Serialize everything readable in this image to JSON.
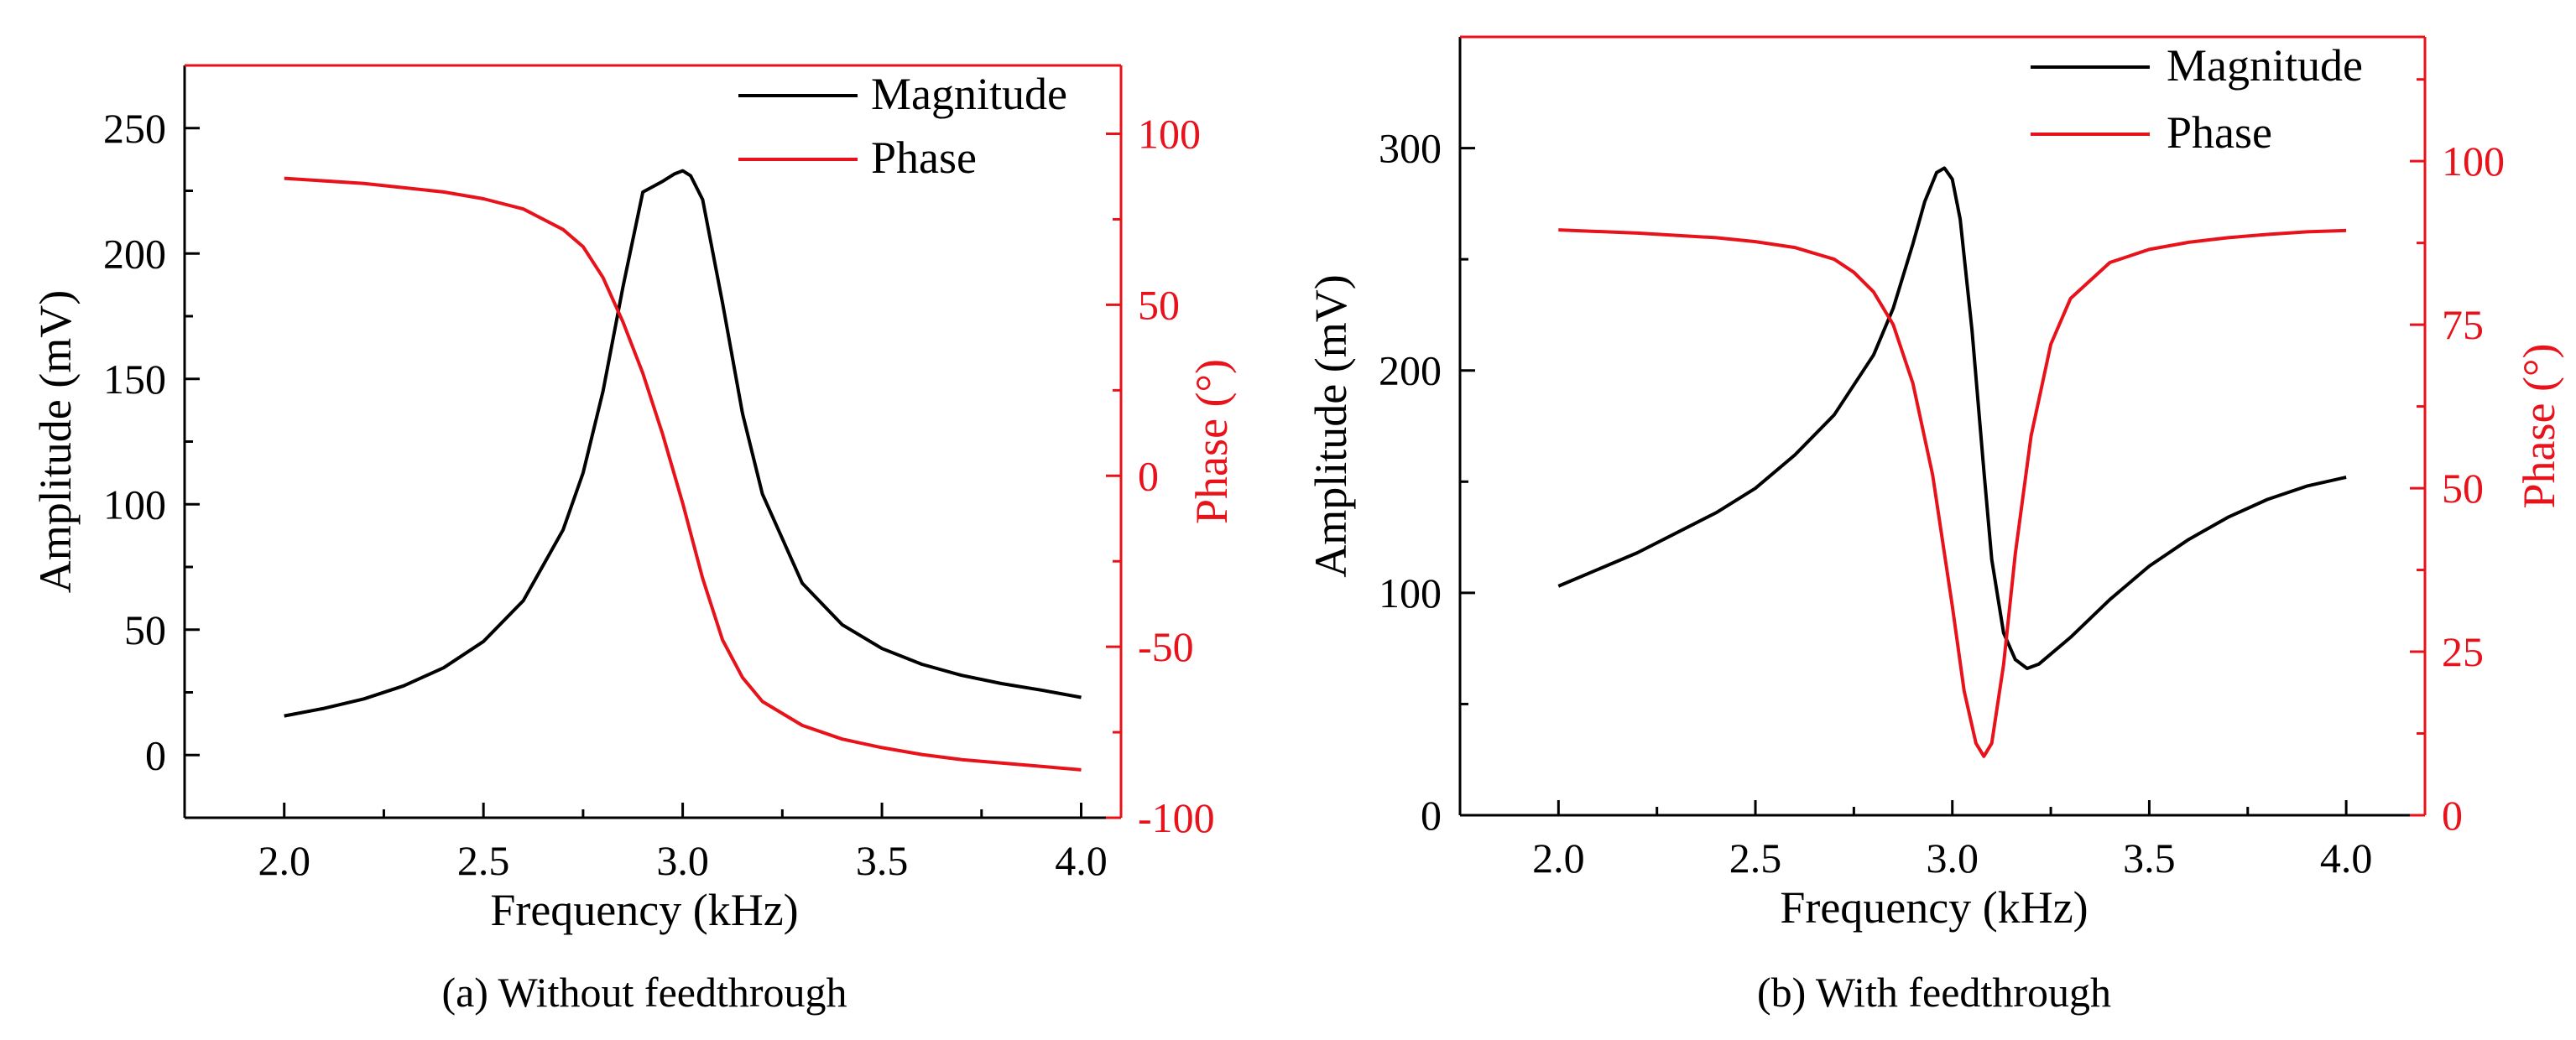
{
  "chart_data": [
    {
      "type": "line",
      "caption": "(a) Without feedthrough",
      "xlabel": "Frequency (kHz)",
      "ylabel": "Amplitude (mV)",
      "y2label": "Phase (°)",
      "xlim": [
        1.75,
        4.1
      ],
      "ylim": [
        -25,
        275
      ],
      "y2lim": [
        -100,
        120
      ],
      "xticks": [
        2.0,
        2.5,
        3.0,
        3.5,
        4.0
      ],
      "xtick_labels": [
        "2.0",
        "2.5",
        "3.0",
        "3.5",
        "4.0"
      ],
      "yticks": [
        0,
        50,
        100,
        150,
        200,
        250
      ],
      "ytick_labels": [
        "0",
        "50",
        "100",
        "150",
        "200",
        "250"
      ],
      "y2ticks": [
        -100,
        -50,
        0,
        50,
        100
      ],
      "y2tick_labels": [
        "-100",
        "-50",
        "0",
        "50",
        "100"
      ],
      "legend_position": "top-right",
      "grid": false,
      "series": [
        {
          "name": "Magnitude",
          "axis": "left",
          "color": "#000000",
          "x": [
            2.0,
            2.1,
            2.2,
            2.3,
            2.4,
            2.5,
            2.6,
            2.7,
            2.75,
            2.8,
            2.85,
            2.9,
            2.95,
            2.98,
            3.0,
            3.02,
            3.05,
            3.1,
            3.15,
            3.2,
            3.3,
            3.4,
            3.5,
            3.6,
            3.7,
            3.8,
            3.9,
            4.0
          ],
          "values": [
            15.6,
            18.6,
            22.4,
            27.6,
            34.8,
            45.3,
            61.6,
            89.8,
            112.5,
            145.0,
            186.6,
            224.5,
            228.8,
            231.8,
            233.0,
            231.0,
            221.5,
            180.3,
            136.2,
            104.1,
            68.5,
            52.0,
            42.5,
            36.2,
            31.8,
            28.5,
            25.9,
            23.0
          ]
        },
        {
          "name": "Phase",
          "axis": "right",
          "color": "#e8121b",
          "x": [
            2.0,
            2.2,
            2.4,
            2.5,
            2.6,
            2.7,
            2.75,
            2.8,
            2.85,
            2.9,
            2.95,
            3.0,
            3.05,
            3.1,
            3.15,
            3.2,
            3.3,
            3.4,
            3.5,
            3.6,
            3.7,
            3.8,
            3.9,
            4.0
          ],
          "values": [
            87.0,
            85.5,
            83.0,
            81.0,
            78.0,
            72.0,
            67.0,
            58.0,
            45.0,
            30.0,
            12.0,
            -8.0,
            -30.0,
            -48.0,
            -59.0,
            -66.0,
            -73.0,
            -77.0,
            -79.5,
            -81.5,
            -83.0,
            -84.0,
            -85.0,
            -86.0
          ]
        }
      ]
    },
    {
      "type": "line",
      "caption": "(b) With feedthrough",
      "xlabel": "Frequency (kHz)",
      "ylabel": "Amplitude (mV)",
      "y2label": "Phase (°)",
      "xlim": [
        1.75,
        4.2
      ],
      "ylim": [
        0,
        350
      ],
      "y2lim": [
        0,
        119
      ],
      "xticks": [
        2.0,
        2.5,
        3.0,
        3.5,
        4.0
      ],
      "xtick_labels": [
        "2.0",
        "2.5",
        "3.0",
        "3.5",
        "4.0"
      ],
      "yticks": [
        0,
        100,
        200,
        300
      ],
      "ytick_labels": [
        "0",
        "100",
        "200",
        "300"
      ],
      "y2ticks": [
        0,
        25,
        50,
        75,
        100
      ],
      "y2tick_labels": [
        "0",
        "25",
        "50",
        "75",
        "100"
      ],
      "legend_position": "top-right",
      "grid": false,
      "series": [
        {
          "name": "Magnitude",
          "axis": "left",
          "color": "#000000",
          "x": [
            2.0,
            2.2,
            2.4,
            2.5,
            2.6,
            2.7,
            2.8,
            2.85,
            2.9,
            2.93,
            2.96,
            2.98,
            3.0,
            3.02,
            3.05,
            3.08,
            3.1,
            3.13,
            3.16,
            3.19,
            3.22,
            3.3,
            3.4,
            3.5,
            3.6,
            3.7,
            3.8,
            3.9,
            4.0
          ],
          "values": [
            103.0,
            118.0,
            136.0,
            147.0,
            162.0,
            180.0,
            207.0,
            228.0,
            257.0,
            276.0,
            289.0,
            291.0,
            286.0,
            268.0,
            218.0,
            155.0,
            115.0,
            82.0,
            70.0,
            66.0,
            68.0,
            80.0,
            97.0,
            112.0,
            124.0,
            134.0,
            142.0,
            148.0,
            152.0
          ]
        },
        {
          "name": "Phase",
          "axis": "right",
          "color": "#e8121b",
          "x": [
            2.0,
            2.2,
            2.4,
            2.5,
            2.6,
            2.7,
            2.75,
            2.8,
            2.85,
            2.9,
            2.95,
            3.0,
            3.03,
            3.06,
            3.08,
            3.1,
            3.13,
            3.16,
            3.2,
            3.25,
            3.3,
            3.4,
            3.5,
            3.6,
            3.7,
            3.8,
            3.9,
            4.0
          ],
          "values": [
            89.5,
            89.0,
            88.3,
            87.7,
            86.8,
            85.0,
            83.0,
            80.0,
            75.0,
            66.0,
            52.0,
            32.0,
            19.0,
            11.0,
            9.0,
            11.0,
            23.0,
            40.0,
            58.0,
            72.0,
            79.0,
            84.5,
            86.5,
            87.6,
            88.3,
            88.8,
            89.2,
            89.4
          ]
        }
      ]
    }
  ]
}
